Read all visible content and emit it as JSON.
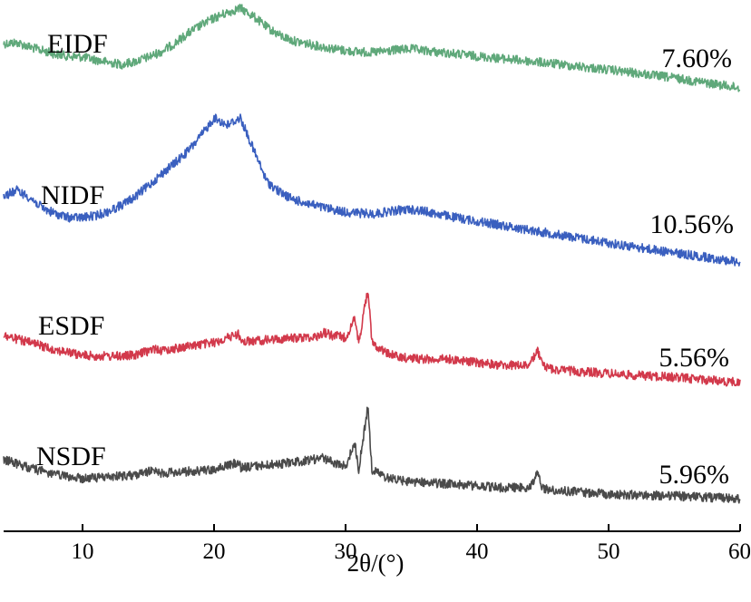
{
  "chart_data": {
    "type": "line",
    "title": "",
    "xlabel": "2θ/(°)",
    "ylabel": "",
    "xlim": [
      4,
      60
    ],
    "xticks": [
      "10",
      "20",
      "30",
      "40",
      "50",
      "60"
    ],
    "y_axis_shown": false,
    "grid": false,
    "legend": "none (series labelled directly on the curves)",
    "series": [
      {
        "name": "EIDF",
        "crystallinity": "7.60%",
        "color": "#5fa87a",
        "x": [
          4,
          5,
          6,
          7,
          8,
          9,
          10,
          11,
          12,
          13,
          14,
          15,
          16,
          17,
          18,
          19,
          20,
          21,
          22,
          23,
          24,
          25,
          26,
          28,
          30,
          32,
          34,
          35,
          36,
          38,
          40,
          45,
          50,
          55,
          60
        ],
        "y": [
          48,
          47,
          52,
          56,
          60,
          62,
          63,
          66,
          69,
          71,
          68,
          63,
          57,
          48,
          37,
          28,
          20,
          14,
          9,
          18,
          30,
          39,
          45,
          51,
          56,
          58,
          55,
          54,
          56,
          59,
          62,
          69,
          77,
          86,
          97
        ]
      },
      {
        "name": "NIDF",
        "crystallinity": "10.56%",
        "color": "#3a5fbf",
        "x": [
          4,
          5,
          6,
          7,
          8,
          9,
          10,
          11,
          12,
          13,
          14,
          15,
          16,
          17,
          18,
          19,
          20,
          21,
          22,
          23,
          24,
          25,
          26,
          28,
          30,
          32,
          34,
          35,
          36,
          38,
          40,
          45,
          50,
          55,
          60
        ],
        "y": [
          216,
          210,
          218,
          230,
          236,
          240,
          240,
          238,
          233,
          226,
          217,
          205,
          192,
          180,
          167,
          150,
          130,
          138,
          130,
          165,
          200,
          212,
          220,
          228,
          234,
          236,
          232,
          231,
          233,
          239,
          244,
          256,
          268,
          279,
          289
        ]
      },
      {
        "name": "ESDF",
        "crystallinity": "5.56%",
        "color": "#d2394b",
        "x": [
          4,
          6,
          8,
          10,
          12,
          14,
          15.6,
          16,
          18,
          20,
          21.9,
          22,
          24,
          26,
          28,
          28.3,
          29,
          30,
          30.7,
          31,
          31.7,
          32,
          33,
          34,
          36,
          38,
          40,
          42,
          44,
          44.6,
          45,
          46,
          48,
          50,
          52,
          55,
          60
        ],
        "y": [
          370,
          378,
          386,
          392,
          393,
          392,
          384,
          387,
          382,
          378,
          368,
          377,
          375,
          373,
          371,
          366,
          370,
          372,
          352,
          378,
          318,
          378,
          388,
          394,
          396,
          396,
          400,
          403,
          403,
          386,
          404,
          408,
          410,
          412,
          414,
          416,
          422
        ]
      },
      {
        "name": "NSDF",
        "crystallinity": "5.96%",
        "color": "#4a4a4a",
        "x": [
          4,
          6,
          8,
          10,
          12,
          14,
          15.6,
          16,
          18,
          20,
          21.9,
          22,
          24,
          26,
          28,
          28.3,
          29,
          30,
          30.7,
          31,
          31.7,
          32,
          33,
          34,
          36,
          38,
          40,
          42,
          44,
          44.6,
          45,
          46,
          48,
          50,
          52,
          55,
          60
        ],
        "y": [
          507,
          516,
          524,
          528,
          526,
          524,
          518,
          522,
          520,
          518,
          510,
          516,
          513,
          510,
          506,
          505,
          510,
          514,
          488,
          518,
          448,
          518,
          526,
          530,
          532,
          534,
          536,
          538,
          538,
          522,
          539,
          541,
          543,
          545,
          546,
          547,
          550
        ]
      }
    ]
  }
}
